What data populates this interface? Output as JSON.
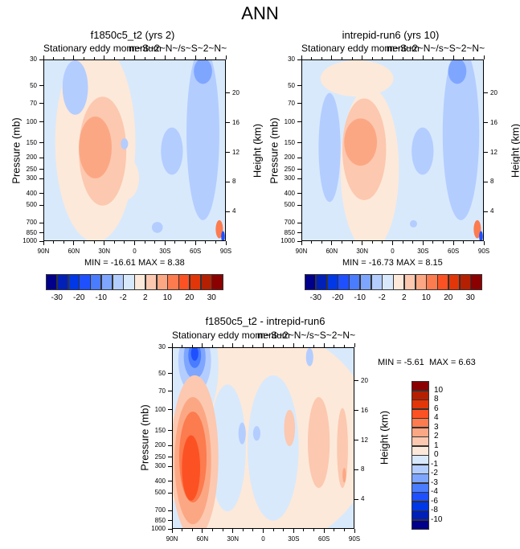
{
  "main_title": "ANN",
  "palette": [
    "#00008b",
    "#0020b8",
    "#0037e6",
    "#1e50ff",
    "#4a7cff",
    "#7fa6ff",
    "#b3cdff",
    "#d8e9fc",
    "#fde9d9",
    "#fcc8b0",
    "#fca784",
    "#fc7b4f",
    "#fc5223",
    "#e33608",
    "#b52002",
    "#8b0000"
  ],
  "chart_data": [
    {
      "type": "heatmap",
      "id": "panel-1",
      "title": "f1850c5_t2 (yrs 2)",
      "subtitle_left": "Stationary eddy momentum",
      "subtitle_right": "m~S~2~N~/s~S~2~N~",
      "xlabel": "",
      "ylabel": "Pressure (mb)",
      "ylabel_right": "Height (km)",
      "x_ticks": [
        "90N",
        "60N",
        "30N",
        "0",
        "30S",
        "60S",
        "90S"
      ],
      "y_ticks": [
        "30",
        "50",
        "70",
        "100",
        "150",
        "200",
        "250",
        "300",
        "400",
        "500",
        "700",
        "850",
        "1000"
      ],
      "y_ticks_right": [
        "20",
        "16",
        "12",
        "8",
        "4"
      ],
      "min_text": "MIN = -16.61",
      "max_text": "MAX =   8.38",
      "min": -16.61,
      "max": 8.38,
      "colorbar": {
        "orientation": "horizontal",
        "levels": [
          -35,
          -30,
          -25,
          -20,
          -15,
          -10,
          -5,
          -2,
          2,
          5,
          10,
          15,
          20,
          25,
          30,
          35
        ],
        "labels": [
          "-30",
          "-20",
          "-10",
          "-2",
          "2",
          "10",
          "20",
          "30"
        ]
      }
    },
    {
      "type": "heatmap",
      "id": "panel-2",
      "title": "intrepid-run6 (yrs 10)",
      "subtitle_left": "Stationary eddy momentum",
      "subtitle_right": "m~S~2~N~/s~S~2~N~",
      "xlabel": "",
      "ylabel": "Pressure (mb)",
      "ylabel_right": "Height (km)",
      "x_ticks": [
        "90N",
        "60N",
        "30N",
        "0",
        "30S",
        "60S",
        "90S"
      ],
      "y_ticks": [
        "30",
        "50",
        "70",
        "100",
        "150",
        "200",
        "250",
        "300",
        "400",
        "500",
        "700",
        "850",
        "1000"
      ],
      "y_ticks_right": [
        "20",
        "16",
        "12",
        "8",
        "4"
      ],
      "min_text": "MIN = -16.73",
      "max_text": "MAX =   8.15",
      "min": -16.73,
      "max": 8.15,
      "colorbar": {
        "orientation": "horizontal",
        "levels": [
          -35,
          -30,
          -25,
          -20,
          -15,
          -10,
          -5,
          -2,
          2,
          5,
          10,
          15,
          20,
          25,
          30,
          35
        ],
        "labels": [
          "-30",
          "-20",
          "-10",
          "-2",
          "2",
          "10",
          "20",
          "30"
        ]
      }
    },
    {
      "type": "heatmap",
      "id": "panel-diff",
      "title": "f1850c5_t2 - intrepid-run6",
      "subtitle_left": "Stationary eddy momentum",
      "subtitle_right": "m~S~2~N~/s~S~2~N~",
      "xlabel": "",
      "ylabel": "Pressure (mb)",
      "ylabel_right": "Height (km)",
      "x_ticks": [
        "90N",
        "60N",
        "30N",
        "0",
        "30S",
        "60S",
        "90S"
      ],
      "y_ticks": [
        "30",
        "50",
        "70",
        "100",
        "150",
        "200",
        "250",
        "300",
        "400",
        "500",
        "700",
        "850",
        "1000"
      ],
      "y_ticks_right": [
        "20",
        "16",
        "12",
        "8",
        "4"
      ],
      "min_text": "MIN =  -5.61",
      "max_text": "MAX =   6.63",
      "min": -5.61,
      "max": 6.63,
      "colorbar": {
        "orientation": "vertical",
        "levels": [
          -12,
          -10,
          -8,
          -6,
          -4,
          -3,
          -2,
          -1,
          0,
          1,
          2,
          3,
          4,
          6,
          8,
          10,
          12
        ],
        "labels": [
          "10",
          "8",
          "6",
          "4",
          "3",
          "2",
          "1",
          "0",
          "-1",
          "-2",
          "-3",
          "-4",
          "-6",
          "-8",
          "-10"
        ]
      }
    }
  ]
}
